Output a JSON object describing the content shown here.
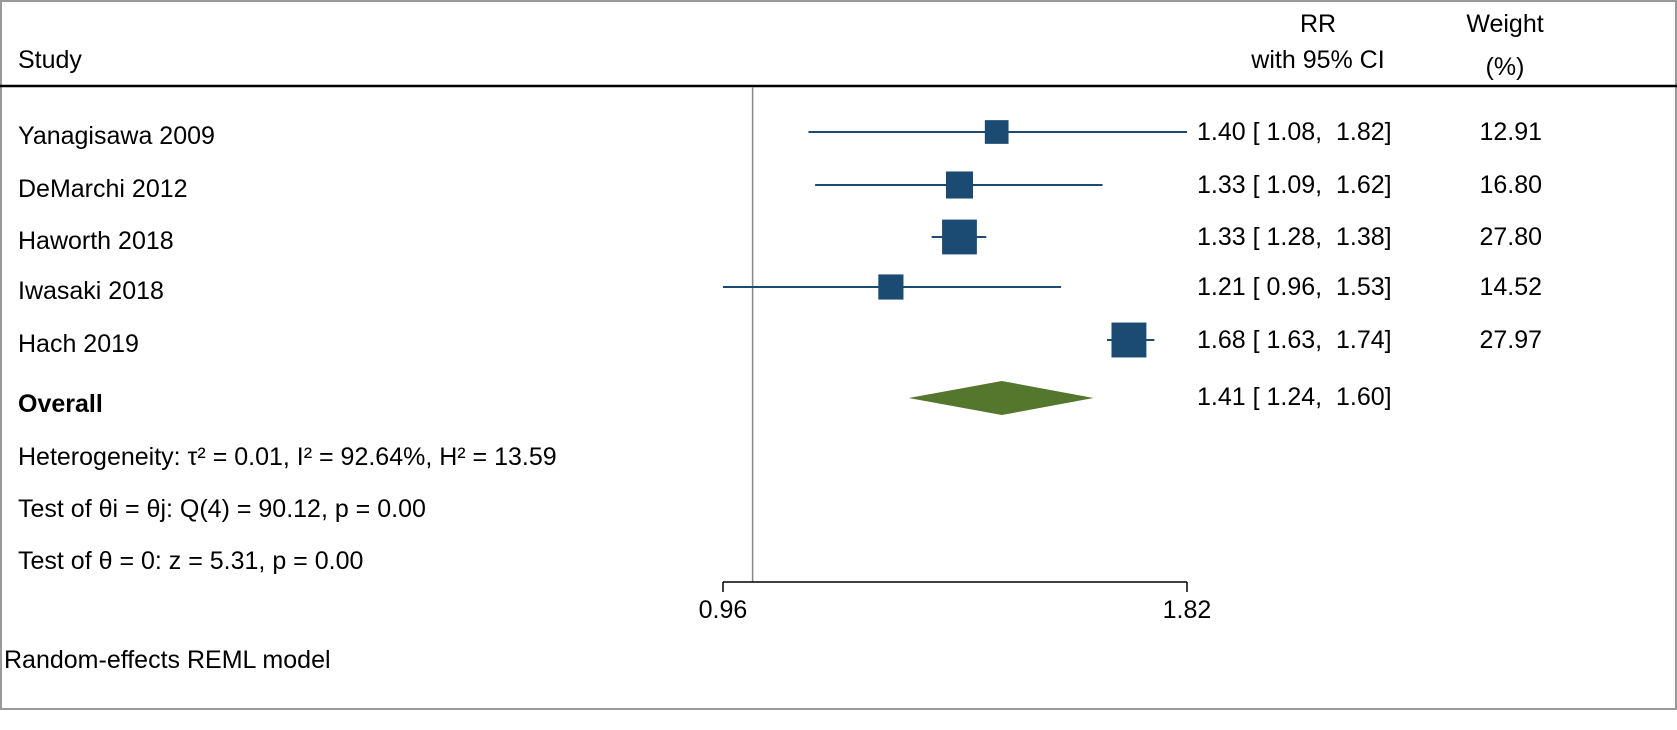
{
  "chart_data": {
    "type": "forest",
    "scale": "log",
    "xlim": [
      0.96,
      1.82
    ],
    "x_ticks": [
      "0.96",
      "1.82"
    ],
    "null_line": 1.0,
    "header": {
      "study": "Study",
      "effect_line1": "RR",
      "effect_line2": "with 95% CI",
      "weight_line1": "Weight",
      "weight_line2": "(%)"
    },
    "studies": [
      {
        "name": "Yanagisawa 2009",
        "rr": 1.4,
        "lo": 1.08,
        "hi": 1.82,
        "ci_text": "1.40 [ 1.08,  1.82]",
        "weight": "12.91"
      },
      {
        "name": "DeMarchi 2012",
        "rr": 1.33,
        "lo": 1.09,
        "hi": 1.62,
        "ci_text": "1.33 [ 1.09,  1.62]",
        "weight": "16.80"
      },
      {
        "name": "Haworth 2018",
        "rr": 1.33,
        "lo": 1.28,
        "hi": 1.38,
        "ci_text": "1.33 [ 1.28,  1.38]",
        "weight": "27.80"
      },
      {
        "name": "Iwasaki 2018",
        "rr": 1.21,
        "lo": 0.96,
        "hi": 1.53,
        "ci_text": "1.21 [ 0.96,  1.53]",
        "weight": "14.52"
      },
      {
        "name": "Hach 2019",
        "rr": 1.68,
        "lo": 1.63,
        "hi": 1.74,
        "ci_text": "1.68 [ 1.63,  1.74]",
        "weight": "27.97"
      }
    ],
    "overall": {
      "label": "Overall",
      "rr": 1.41,
      "lo": 1.24,
      "hi": 1.6,
      "ci_text": "1.41 [ 1.24,  1.60]"
    },
    "heterogeneity": "Heterogeneity: τ² = 0.01, I² = 92.64%, H² = 13.59",
    "test_homogeneity": "Test of θi = θj: Q(4) = 90.12, p = 0.00",
    "test_effect": "Test of θ = 0: z = 5.31, p = 0.00",
    "note": "Random-effects REML model",
    "colors": {
      "marker": "#1b4a72",
      "diamond": "#55772d",
      "null_line": "#888888"
    }
  }
}
